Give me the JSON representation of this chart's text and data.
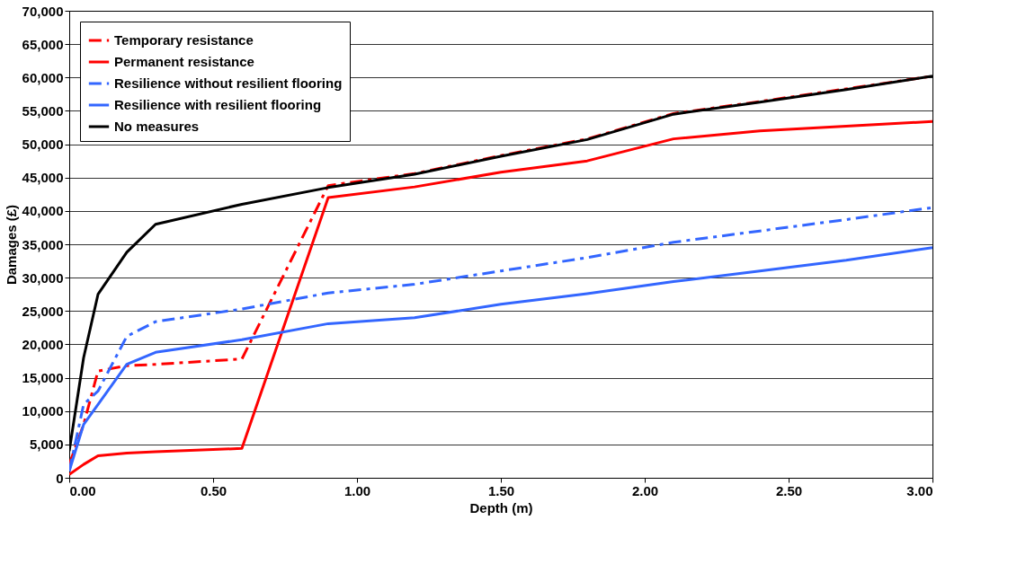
{
  "chart_data": {
    "type": "line",
    "xlabel": "Depth (m)",
    "ylabel": "Damages (£)",
    "x": [
      0,
      0.05,
      0.1,
      0.2,
      0.3,
      0.6,
      0.9,
      1.2,
      1.5,
      1.8,
      2.1,
      2.4,
      2.7,
      3.0
    ],
    "series": [
      {
        "name": "Temporary resistance",
        "color": "#ff0000",
        "line_style": "dashed",
        "values": [
          2000,
          8000,
          16000,
          16800,
          17000,
          17800,
          43800,
          45600,
          48300,
          50800,
          54600,
          56400,
          58300,
          60200
        ]
      },
      {
        "name": "Permanent resistance",
        "color": "#ff0000",
        "line_style": "solid",
        "values": [
          500,
          2000,
          3300,
          3700,
          3900,
          4400,
          42000,
          43600,
          45800,
          47500,
          50800,
          52000,
          52700,
          53400
        ]
      },
      {
        "name": "Resilience without resilient flooring",
        "color": "#3366ff",
        "line_style": "dashed",
        "values": [
          1000,
          11000,
          13000,
          21200,
          23400,
          25300,
          27700,
          29000,
          31000,
          33000,
          35300,
          37000,
          38700,
          40500
        ]
      },
      {
        "name": "Resilience with resilient flooring",
        "color": "#3366ff",
        "line_style": "solid",
        "values": [
          1000,
          8000,
          11000,
          17000,
          18800,
          20700,
          23100,
          24000,
          26000,
          27600,
          29400,
          31000,
          32600,
          34500
        ]
      },
      {
        "name": "No measures",
        "color": "#000000",
        "line_style": "solid",
        "values": [
          4000,
          18000,
          27500,
          33800,
          38000,
          41000,
          43500,
          45500,
          48200,
          50700,
          54500,
          56300,
          58200,
          60200
        ]
      }
    ],
    "xlim": [
      0,
      3
    ],
    "xticks": [
      {
        "value": 0,
        "label": "0.00"
      },
      {
        "value": 0.5,
        "label": "0.50"
      },
      {
        "value": 1,
        "label": "1.00"
      },
      {
        "value": 1.5,
        "label": "1.50"
      },
      {
        "value": 2,
        "label": "2.00"
      },
      {
        "value": 2.5,
        "label": "2.50"
      },
      {
        "value": 3,
        "label": "3.00"
      }
    ],
    "ylim": [
      0,
      70000
    ],
    "yticks": [
      {
        "value": 0,
        "label": "0"
      },
      {
        "value": 5000,
        "label": "5,000"
      },
      {
        "value": 10000,
        "label": "10,000"
      },
      {
        "value": 15000,
        "label": "15,000"
      },
      {
        "value": 20000,
        "label": "20,000"
      },
      {
        "value": 25000,
        "label": "25,000"
      },
      {
        "value": 30000,
        "label": "30,000"
      },
      {
        "value": 35000,
        "label": "35,000"
      },
      {
        "value": 40000,
        "label": "40,000"
      },
      {
        "value": 45000,
        "label": "45,000"
      },
      {
        "value": 50000,
        "label": "50,000"
      },
      {
        "value": 55000,
        "label": "55,000"
      },
      {
        "value": 60000,
        "label": "60,000"
      },
      {
        "value": 65000,
        "label": "65,000"
      },
      {
        "value": 70000,
        "label": "70,000"
      }
    ],
    "grid": "y",
    "legend": "top left"
  }
}
